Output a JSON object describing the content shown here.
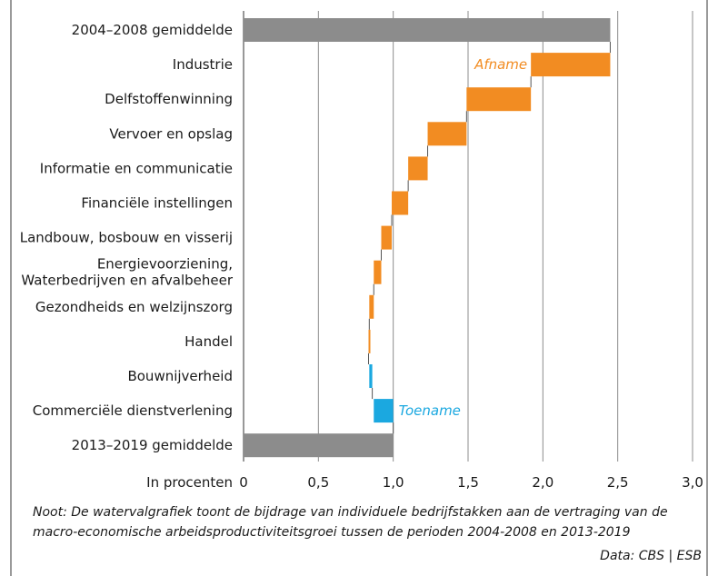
{
  "title_fragment": "",
  "chart_data": {
    "type": "waterfall",
    "orientation": "horizontal",
    "categories": [
      "2004–2008 gemiddelde",
      "Industrie",
      "Delfstoffenwinning",
      "Vervoer en opslag",
      "Informatie en communicatie",
      "Financiële instellingen",
      "Landbouw, bosbouw en visserij",
      "Energievoorziening,\nWaterbedrijven en afvalbeheer",
      "Gezondheids en welzijnszorg",
      "Handel",
      "Bouwnijverheid",
      "Commerciële dienstverlening",
      "2013–2019 gemiddelde"
    ],
    "bars": [
      {
        "kind": "total",
        "start": 0,
        "end": 2.45
      },
      {
        "kind": "decrease",
        "start": 1.92,
        "end": 2.45
      },
      {
        "kind": "decrease",
        "start": 1.49,
        "end": 1.92
      },
      {
        "kind": "decrease",
        "start": 1.23,
        "end": 1.49
      },
      {
        "kind": "decrease",
        "start": 1.1,
        "end": 1.23
      },
      {
        "kind": "decrease",
        "start": 0.99,
        "end": 1.1
      },
      {
        "kind": "decrease",
        "start": 0.92,
        "end": 0.99
      },
      {
        "kind": "decrease",
        "start": 0.87,
        "end": 0.92
      },
      {
        "kind": "decrease",
        "start": 0.84,
        "end": 0.87
      },
      {
        "kind": "decrease",
        "start": 0.835,
        "end": 0.845
      },
      {
        "kind": "increase",
        "start": 0.84,
        "end": 0.86
      },
      {
        "kind": "increase",
        "start": 0.87,
        "end": 1.0
      },
      {
        "kind": "total",
        "start": 0,
        "end": 1.0
      }
    ],
    "annotations": [
      {
        "text": "Afname",
        "bar_index": 1,
        "color": "#f28c22"
      },
      {
        "text": "Toename",
        "bar_index": 11,
        "color": "#1ba8e0"
      }
    ],
    "xlabel": "In procenten",
    "xlim": [
      0,
      3.0
    ],
    "xticks": [
      0,
      0.5,
      1.0,
      1.5,
      2.0,
      2.5,
      3.0
    ],
    "xtick_labels": [
      "0",
      "0,5",
      "1,0",
      "1,5",
      "2,0",
      "2,5",
      "3,0"
    ],
    "grid": "vertical",
    "colors": {
      "total": "#8c8c8c",
      "decrease": "#f28c22",
      "increase": "#1ba8e0",
      "grid": "#8c8c8c",
      "connector": "#555555"
    }
  },
  "note_lines": [
    "Noot: De watervalgrafiek toont de bijdrage van individuele bedrijfstakken aan de vertraging van de",
    "macro-economische arbeidsproductiviteitsgroei tussen de perioden 2004-2008 en 2013-2019"
  ],
  "source": "Data: CBS | ESB"
}
